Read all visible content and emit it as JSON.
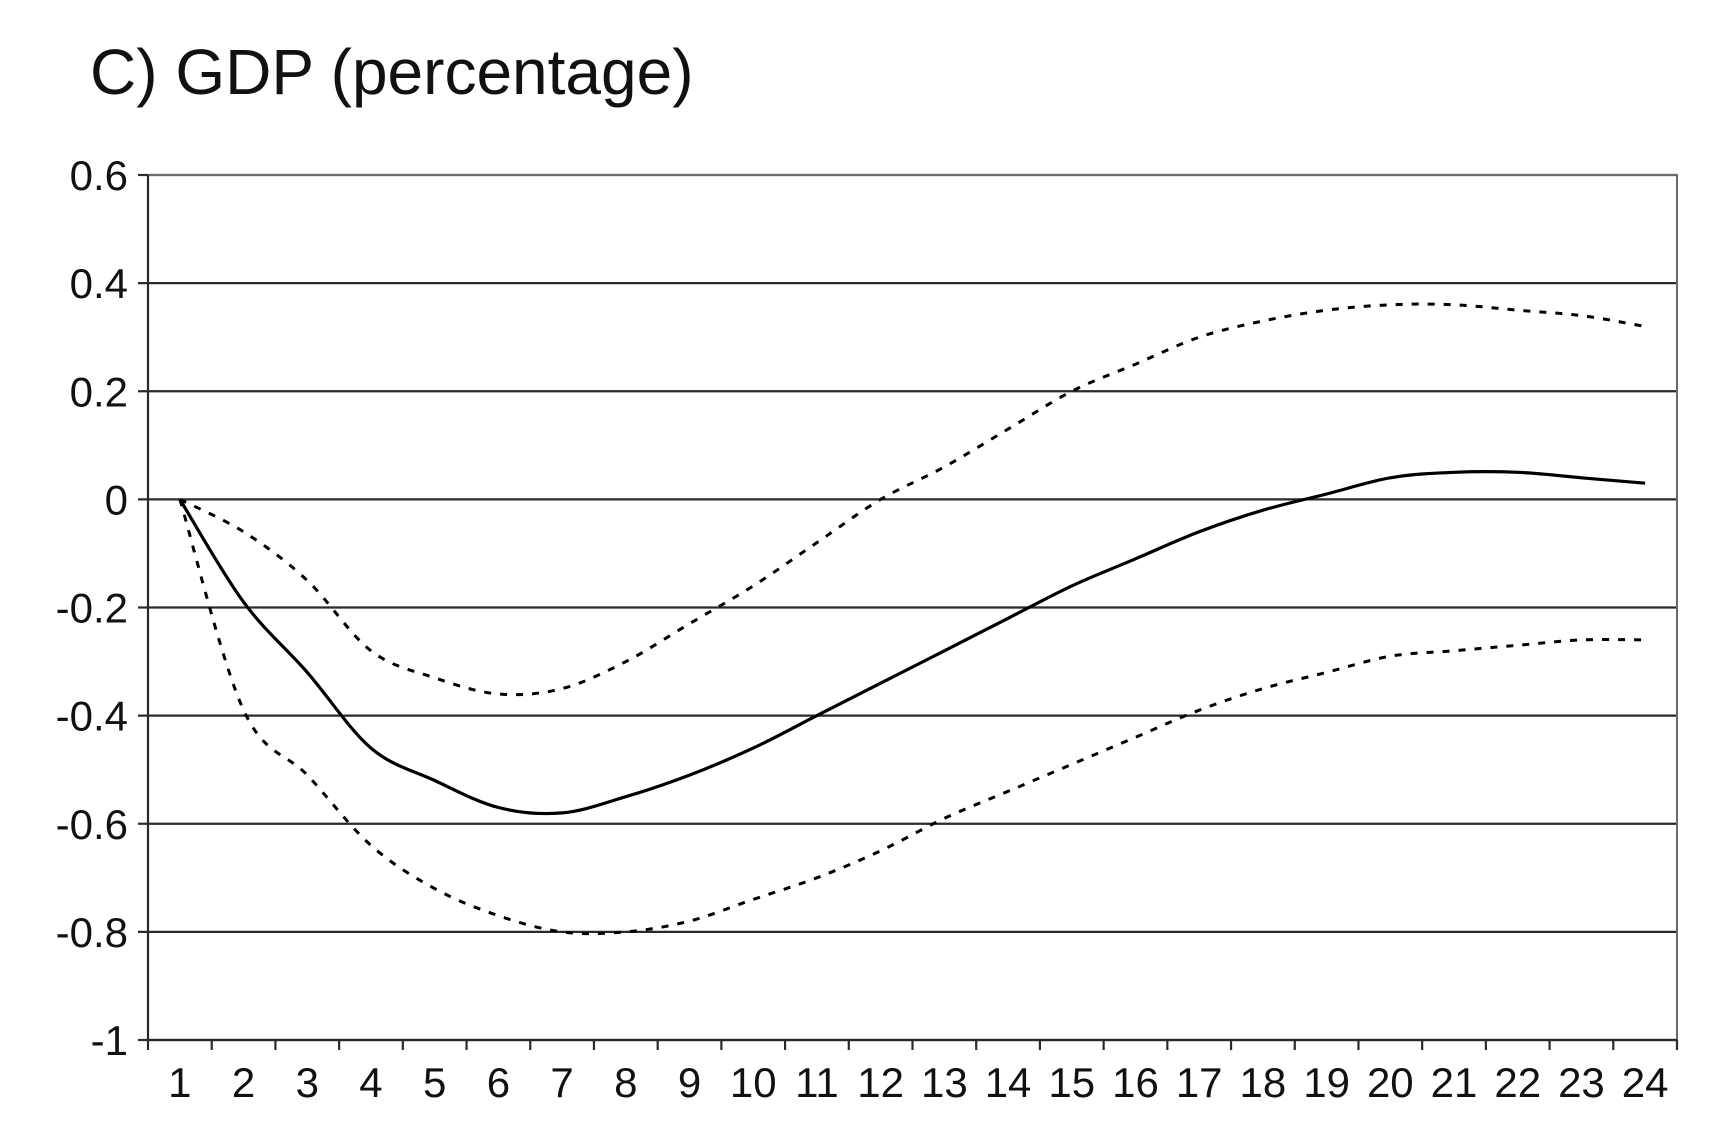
{
  "chart_data": {
    "type": "line",
    "title": "C) GDP (percentage)",
    "xlabel": "",
    "ylabel": "",
    "x": [
      1,
      2,
      3,
      4,
      5,
      6,
      7,
      8,
      9,
      10,
      11,
      12,
      13,
      14,
      15,
      16,
      17,
      18,
      19,
      20,
      21,
      22,
      23,
      24
    ],
    "x_tick_labels": [
      "1",
      "2",
      "3",
      "4",
      "5",
      "6",
      "7",
      "8",
      "9",
      "10",
      "11",
      "12",
      "13",
      "14",
      "15",
      "16",
      "17",
      "18",
      "19",
      "20",
      "21",
      "22",
      "23",
      "24"
    ],
    "y_tick_values": [
      0.6,
      0.4,
      0.2,
      0,
      -0.2,
      -0.4,
      -0.6,
      -0.8,
      -1
    ],
    "y_tick_labels": [
      "0.6",
      "0.4",
      "0.2",
      "0",
      "-0.2",
      "-0.4",
      "-0.6",
      "-0.8",
      "-1"
    ],
    "ylim": [
      -1,
      0.6
    ],
    "xlim": [
      0.5,
      24.5
    ],
    "grid": "horizontal",
    "legend": "none",
    "series": [
      {
        "style": "solid",
        "color": "#000000",
        "values": [
          0,
          -0.19,
          -0.32,
          -0.46,
          -0.52,
          -0.57,
          -0.58,
          -0.55,
          -0.51,
          -0.46,
          -0.4,
          -0.34,
          -0.28,
          -0.22,
          -0.16,
          -0.11,
          -0.06,
          -0.02,
          0.01,
          0.04,
          0.05,
          0.05,
          0.04,
          0.03
        ]
      },
      {
        "style": "dotted",
        "color": "#000000",
        "values": [
          0,
          -0.06,
          -0.15,
          -0.28,
          -0.33,
          -0.36,
          -0.35,
          -0.3,
          -0.23,
          -0.16,
          -0.08,
          0,
          0.06,
          0.13,
          0.2,
          0.25,
          0.3,
          0.33,
          0.35,
          0.36,
          0.36,
          0.35,
          0.34,
          0.32
        ]
      },
      {
        "style": "dotted",
        "color": "#000000",
        "values": [
          0,
          -0.39,
          -0.51,
          -0.64,
          -0.72,
          -0.77,
          -0.8,
          -0.8,
          -0.78,
          -0.74,
          -0.7,
          -0.65,
          -0.59,
          -0.54,
          -0.49,
          -0.44,
          -0.39,
          -0.35,
          -0.32,
          -0.29,
          -0.28,
          -0.27,
          -0.26,
          -0.26
        ]
      }
    ]
  }
}
